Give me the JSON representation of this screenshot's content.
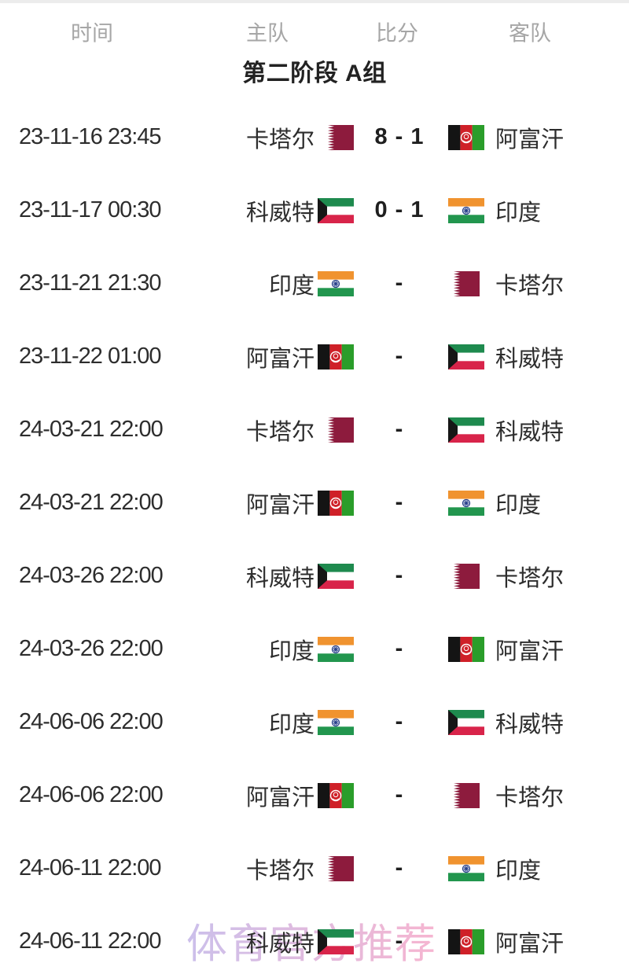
{
  "header": {
    "columns": [
      {
        "key": "time",
        "label": "时间"
      },
      {
        "key": "home",
        "label": "主队"
      },
      {
        "key": "score",
        "label": "比分"
      },
      {
        "key": "away",
        "label": "客队"
      }
    ]
  },
  "section": {
    "title": "第二阶段 A组"
  },
  "watermark": {
    "text": "体育官方推荐",
    "color_start": "#c3b5e8",
    "color_end": "#f5a9c9"
  },
  "colors": {
    "header_text": "#a6a6a6",
    "body_text": "#2d2d2d",
    "title_text": "#222222",
    "score_text": "#1f1f1f",
    "background": "#ffffff"
  },
  "flags": {
    "qatar": {
      "field": "#8d1b3d",
      "band": "#ffffff"
    },
    "afghanistan": {
      "black": "#141414",
      "red": "#cf2028",
      "green": "#2a9d2a",
      "emblem": "#ffffff"
    },
    "kuwait": {
      "green": "#1e8a4e",
      "white": "#ffffff",
      "red": "#d8244a",
      "black": "#161616"
    },
    "india": {
      "saffron": "#f0932f",
      "white": "#ffffff",
      "green": "#22964e",
      "chakra": "#27408b"
    }
  },
  "matches": [
    {
      "time": "23-11-16 23:45",
      "home": "卡塔尔",
      "home_flag": "qatar",
      "score": "8 - 1",
      "away": "阿富汗",
      "away_flag": "afghanistan"
    },
    {
      "time": "23-11-17 00:30",
      "home": "科威特",
      "home_flag": "kuwait",
      "score": "0 - 1",
      "away": "印度",
      "away_flag": "india"
    },
    {
      "time": "23-11-21 21:30",
      "home": "印度",
      "home_flag": "india",
      "score": "-",
      "away": "卡塔尔",
      "away_flag": "qatar"
    },
    {
      "time": "23-11-22 01:00",
      "home": "阿富汗",
      "home_flag": "afghanistan",
      "score": "-",
      "away": "科威特",
      "away_flag": "kuwait"
    },
    {
      "time": "24-03-21 22:00",
      "home": "卡塔尔",
      "home_flag": "qatar",
      "score": "-",
      "away": "科威特",
      "away_flag": "kuwait"
    },
    {
      "time": "24-03-21 22:00",
      "home": "阿富汗",
      "home_flag": "afghanistan",
      "score": "-",
      "away": "印度",
      "away_flag": "india"
    },
    {
      "time": "24-03-26 22:00",
      "home": "科威特",
      "home_flag": "kuwait",
      "score": "-",
      "away": "卡塔尔",
      "away_flag": "qatar"
    },
    {
      "time": "24-03-26 22:00",
      "home": "印度",
      "home_flag": "india",
      "score": "-",
      "away": "阿富汗",
      "away_flag": "afghanistan"
    },
    {
      "time": "24-06-06 22:00",
      "home": "印度",
      "home_flag": "india",
      "score": "-",
      "away": "科威特",
      "away_flag": "kuwait"
    },
    {
      "time": "24-06-06 22:00",
      "home": "阿富汗",
      "home_flag": "afghanistan",
      "score": "-",
      "away": "卡塔尔",
      "away_flag": "qatar"
    },
    {
      "time": "24-06-11 22:00",
      "home": "卡塔尔",
      "home_flag": "qatar",
      "score": "-",
      "away": "印度",
      "away_flag": "india"
    },
    {
      "time": "24-06-11 22:00",
      "home": "科威特",
      "home_flag": "kuwait",
      "score": "-",
      "away": "阿富汗",
      "away_flag": "afghanistan"
    }
  ]
}
